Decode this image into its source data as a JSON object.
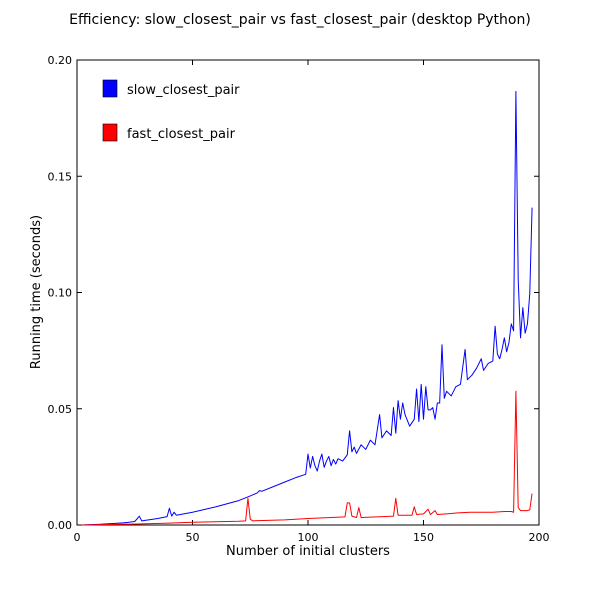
{
  "chart_data": {
    "type": "line",
    "title": "Efficiency: slow_closest_pair vs fast_closest_pair (desktop Python)",
    "xlabel": "Number of initial clusters",
    "ylabel": "Running time (seconds)",
    "xlim": [
      0,
      200
    ],
    "ylim": [
      0,
      0.2
    ],
    "xticks": [
      "0",
      "50",
      "100",
      "150",
      "200"
    ],
    "yticks": [
      "0.00",
      "0.05",
      "0.10",
      "0.15",
      "0.20"
    ],
    "grid": false,
    "legend_position": "top-left",
    "series": [
      {
        "name": "slow_closest_pair",
        "color": "#0000ff",
        "points": [
          [
            2,
            0.0
          ],
          [
            10,
            0.0003
          ],
          [
            20,
            0.0009
          ],
          [
            25,
            0.0015
          ],
          [
            27,
            0.0038
          ],
          [
            28,
            0.0018
          ],
          [
            35,
            0.0028
          ],
          [
            39,
            0.0036
          ],
          [
            40,
            0.0072
          ],
          [
            41,
            0.0038
          ],
          [
            42,
            0.0055
          ],
          [
            43,
            0.0042
          ],
          [
            50,
            0.0055
          ],
          [
            60,
            0.0078
          ],
          [
            70,
            0.0105
          ],
          [
            75,
            0.0125
          ],
          [
            78,
            0.0138
          ],
          [
            79,
            0.0148
          ],
          [
            80,
            0.0145
          ],
          [
            85,
            0.0165
          ],
          [
            90,
            0.0185
          ],
          [
            95,
            0.0205
          ],
          [
            99,
            0.0218
          ],
          [
            100,
            0.0305
          ],
          [
            101,
            0.0245
          ],
          [
            102,
            0.0295
          ],
          [
            103,
            0.0255
          ],
          [
            104,
            0.0232
          ],
          [
            105,
            0.0275
          ],
          [
            106,
            0.0305
          ],
          [
            107,
            0.0248
          ],
          [
            108,
            0.0275
          ],
          [
            109,
            0.0295
          ],
          [
            110,
            0.0255
          ],
          [
            111,
            0.0282
          ],
          [
            112,
            0.0262
          ],
          [
            113,
            0.0285
          ],
          [
            115,
            0.0275
          ],
          [
            117,
            0.0302
          ],
          [
            118,
            0.0405
          ],
          [
            119,
            0.0315
          ],
          [
            120,
            0.0335
          ],
          [
            121,
            0.0308
          ],
          [
            123,
            0.0345
          ],
          [
            125,
            0.0325
          ],
          [
            127,
            0.0365
          ],
          [
            129,
            0.0345
          ],
          [
            131,
            0.0475
          ],
          [
            132,
            0.0375
          ],
          [
            134,
            0.0405
          ],
          [
            136,
            0.0385
          ],
          [
            137,
            0.0505
          ],
          [
            138,
            0.0395
          ],
          [
            139,
            0.0535
          ],
          [
            140,
            0.0455
          ],
          [
            141,
            0.0525
          ],
          [
            142,
            0.0475
          ],
          [
            144,
            0.0425
          ],
          [
            146,
            0.0455
          ],
          [
            147,
            0.0585
          ],
          [
            148,
            0.0445
          ],
          [
            149,
            0.0605
          ],
          [
            150,
            0.0455
          ],
          [
            151,
            0.0595
          ],
          [
            152,
            0.0495
          ],
          [
            153,
            0.0495
          ],
          [
            154,
            0.0505
          ],
          [
            155,
            0.0455
          ],
          [
            156,
            0.0525
          ],
          [
            157,
            0.0525
          ],
          [
            158,
            0.0775
          ],
          [
            159,
            0.0545
          ],
          [
            160,
            0.0575
          ],
          [
            162,
            0.0555
          ],
          [
            164,
            0.0595
          ],
          [
            166,
            0.0605
          ],
          [
            168,
            0.0755
          ],
          [
            169,
            0.0625
          ],
          [
            171,
            0.0645
          ],
          [
            173,
            0.0675
          ],
          [
            175,
            0.0715
          ],
          [
            176,
            0.0665
          ],
          [
            178,
            0.0695
          ],
          [
            180,
            0.0705
          ],
          [
            181,
            0.0855
          ],
          [
            182,
            0.0735
          ],
          [
            183,
            0.0715
          ],
          [
            184,
            0.0755
          ],
          [
            185,
            0.0805
          ],
          [
            186,
            0.0745
          ],
          [
            187,
            0.0785
          ],
          [
            188,
            0.0865
          ],
          [
            189,
            0.0835
          ],
          [
            190,
            0.1865
          ],
          [
            191,
            0.1055
          ],
          [
            192,
            0.0805
          ],
          [
            193,
            0.0935
          ],
          [
            194,
            0.0825
          ],
          [
            195,
            0.0865
          ],
          [
            196,
            0.0995
          ],
          [
            197,
            0.1365
          ]
        ]
      },
      {
        "name": "fast_closest_pair",
        "color": "#ff0000",
        "points": [
          [
            2,
            0.0
          ],
          [
            20,
            0.0003
          ],
          [
            40,
            0.0008
          ],
          [
            50,
            0.0012
          ],
          [
            60,
            0.0014
          ],
          [
            70,
            0.0016
          ],
          [
            73,
            0.0018
          ],
          [
            74,
            0.0115
          ],
          [
            75,
            0.0025
          ],
          [
            76,
            0.0018
          ],
          [
            90,
            0.0022
          ],
          [
            100,
            0.0028
          ],
          [
            110,
            0.0032
          ],
          [
            116,
            0.0035
          ],
          [
            117,
            0.0095
          ],
          [
            118,
            0.0095
          ],
          [
            119,
            0.0038
          ],
          [
            120,
            0.0035
          ],
          [
            121,
            0.0032
          ],
          [
            122,
            0.0075
          ],
          [
            123,
            0.0032
          ],
          [
            130,
            0.0035
          ],
          [
            137,
            0.0038
          ],
          [
            138,
            0.0115
          ],
          [
            139,
            0.0042
          ],
          [
            140,
            0.0042
          ],
          [
            145,
            0.0042
          ],
          [
            146,
            0.0078
          ],
          [
            147,
            0.0045
          ],
          [
            150,
            0.0048
          ],
          [
            152,
            0.0068
          ],
          [
            153,
            0.0045
          ],
          [
            155,
            0.0062
          ],
          [
            156,
            0.0045
          ],
          [
            160,
            0.0048
          ],
          [
            165,
            0.0052
          ],
          [
            170,
            0.0055
          ],
          [
            175,
            0.0055
          ],
          [
            180,
            0.0055
          ],
          [
            185,
            0.0058
          ],
          [
            188,
            0.0058
          ],
          [
            189,
            0.0055
          ],
          [
            190,
            0.0575
          ],
          [
            191,
            0.0075
          ],
          [
            192,
            0.0062
          ],
          [
            193,
            0.0062
          ],
          [
            195,
            0.0062
          ],
          [
            196,
            0.0065
          ],
          [
            197,
            0.0135
          ]
        ]
      }
    ]
  }
}
